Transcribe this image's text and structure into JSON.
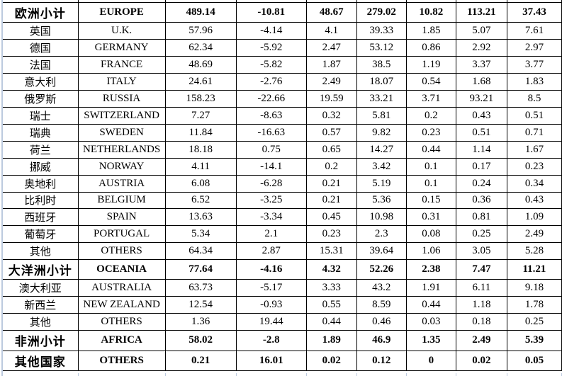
{
  "sheet": {
    "border_color": "#000000",
    "gridline_color": "#bccadf",
    "text_color": "#000000"
  },
  "table": {
    "columns": [
      "region-cn",
      "region-en",
      "value-1",
      "value-2",
      "value-3",
      "value-4",
      "value-5",
      "value-6",
      "value-7"
    ],
    "rows": [
      {
        "cn": "欧洲小计",
        "en": "EUROPE",
        "values": [
          "489.14",
          "-10.81",
          "48.67",
          "279.02",
          "10.82",
          "113.21",
          "37.43"
        ],
        "bold": true
      },
      {
        "cn": "英国",
        "en": "U.K.",
        "values": [
          "57.96",
          "-4.14",
          "4.1",
          "39.33",
          "1.85",
          "5.07",
          "7.61"
        ],
        "bold": false
      },
      {
        "cn": "德国",
        "en": "GERMANY",
        "values": [
          "62.34",
          "-5.92",
          "2.47",
          "53.12",
          "0.86",
          "2.92",
          "2.97"
        ],
        "bold": false
      },
      {
        "cn": "法国",
        "en": "FRANCE",
        "values": [
          "48.69",
          "-5.82",
          "1.87",
          "38.5",
          "1.19",
          "3.37",
          "3.77"
        ],
        "bold": false
      },
      {
        "cn": "意大利",
        "en": "ITALY",
        "values": [
          "24.61",
          "-2.76",
          "2.49",
          "18.07",
          "0.54",
          "1.68",
          "1.83"
        ],
        "bold": false
      },
      {
        "cn": "俄罗斯",
        "en": "RUSSIA",
        "values": [
          "158.23",
          "-22.66",
          "19.59",
          "33.21",
          "3.71",
          "93.21",
          "8.5"
        ],
        "bold": false
      },
      {
        "cn": "瑞士",
        "en": "SWITZERLAND",
        "values": [
          "7.27",
          "-8.63",
          "0.32",
          "5.81",
          "0.2",
          "0.43",
          "0.51"
        ],
        "bold": false
      },
      {
        "cn": "瑞典",
        "en": "SWEDEN",
        "values": [
          "11.84",
          "-16.63",
          "0.57",
          "9.82",
          "0.23",
          "0.51",
          "0.71"
        ],
        "bold": false
      },
      {
        "cn": "荷兰",
        "en": "NETHERLANDS",
        "values": [
          "18.18",
          "0.75",
          "0.65",
          "14.27",
          "0.44",
          "1.14",
          "1.67"
        ],
        "bold": false
      },
      {
        "cn": "挪威",
        "en": "NORWAY",
        "values": [
          "4.11",
          "-14.1",
          "0.2",
          "3.42",
          "0.1",
          "0.17",
          "0.23"
        ],
        "bold": false
      },
      {
        "cn": "奥地利",
        "en": "AUSTRIA",
        "values": [
          "6.08",
          "-6.28",
          "0.21",
          "5.19",
          "0.1",
          "0.24",
          "0.34"
        ],
        "bold": false
      },
      {
        "cn": "比利时",
        "en": "BELGIUM",
        "values": [
          "6.52",
          "-3.25",
          "0.21",
          "5.36",
          "0.15",
          "0.36",
          "0.43"
        ],
        "bold": false
      },
      {
        "cn": "西班牙",
        "en": "SPAIN",
        "values": [
          "13.63",
          "-3.34",
          "0.45",
          "10.98",
          "0.31",
          "0.81",
          "1.09"
        ],
        "bold": false
      },
      {
        "cn": "葡萄牙",
        "en": "PORTUGAL",
        "values": [
          "5.34",
          "2.1",
          "0.23",
          "2.3",
          "0.08",
          "0.25",
          "2.49"
        ],
        "bold": false
      },
      {
        "cn": "其他",
        "en": "OTHERS",
        "values": [
          "64.34",
          "2.87",
          "15.31",
          "39.64",
          "1.06",
          "3.05",
          "5.28"
        ],
        "bold": false
      },
      {
        "cn": "大洋洲小计",
        "en": "OCEANIA",
        "values": [
          "77.64",
          "-4.16",
          "4.32",
          "52.26",
          "2.38",
          "7.47",
          "11.21"
        ],
        "bold": true
      },
      {
        "cn": "澳大利亚",
        "en": "AUSTRALIA",
        "values": [
          "63.73",
          "-5.17",
          "3.33",
          "43.2",
          "1.91",
          "6.11",
          "9.18"
        ],
        "bold": false
      },
      {
        "cn": "新西兰",
        "en": "NEW ZEALAND",
        "values": [
          "12.54",
          "-0.93",
          "0.55",
          "8.59",
          "0.44",
          "1.18",
          "1.78"
        ],
        "bold": false
      },
      {
        "cn": "其他",
        "en": "OTHERS",
        "values": [
          "1.36",
          "19.44",
          "0.44",
          "0.46",
          "0.03",
          "0.18",
          "0.25"
        ],
        "bold": false
      },
      {
        "cn": "非洲小计",
        "en": "AFRICA",
        "values": [
          "58.02",
          "-2.8",
          "1.89",
          "46.9",
          "1.35",
          "2.49",
          "5.39"
        ],
        "bold": true
      },
      {
        "cn": "其他国家",
        "en": "OTHERS",
        "values": [
          "0.21",
          "16.01",
          "0.02",
          "0.12",
          "0",
          "0.02",
          "0.05"
        ],
        "bold": true
      }
    ]
  }
}
